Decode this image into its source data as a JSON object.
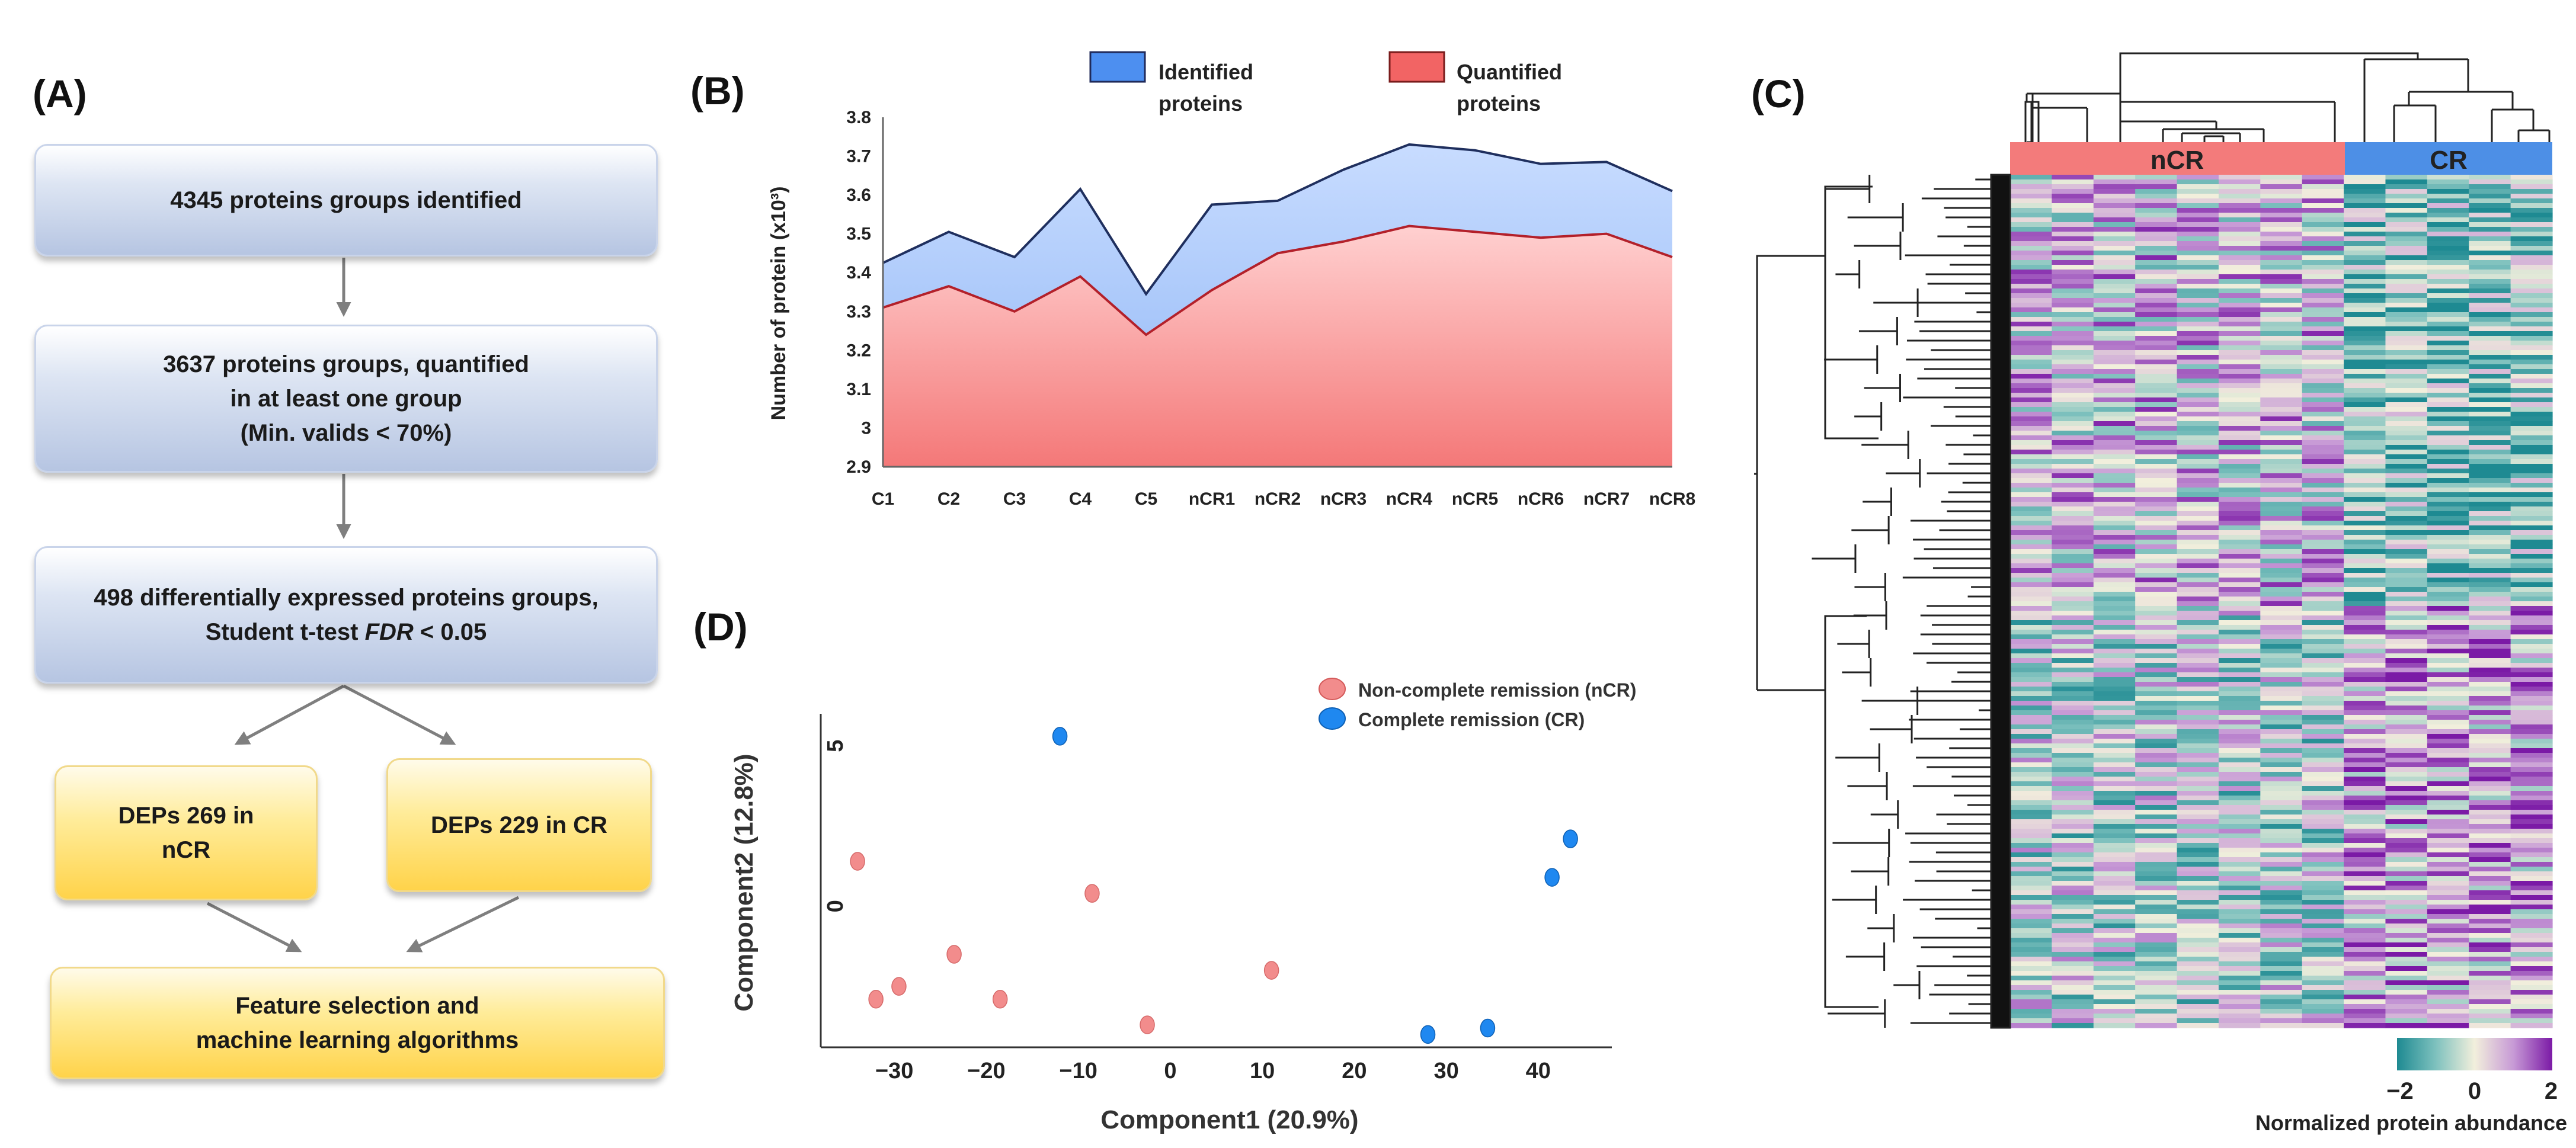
{
  "panel_labels": {
    "a": "(A)",
    "b": "(B)",
    "c": "(C)",
    "d": "(D)"
  },
  "flowchart": {
    "box1": "4345 proteins groups identified",
    "box2_line1": "3637 proteins groups, quantified",
    "box2_line2": "in at least one group",
    "box2_line3": "(Min. valids < 70%)",
    "box3_line1": "498 differentially expressed proteins groups,",
    "box3_line2_pre": "Student t-test ",
    "box3_line2_em": "FDR",
    "box3_line2_post": " < 0.05",
    "box4_line1": "DEPs 269 in",
    "box4_line2": "nCR",
    "box5": "DEPs 229 in CR",
    "box6_line1": "Feature selection and",
    "box6_line2": "machine learning algorithms"
  },
  "heatmap": {
    "group_ncr": "nCR",
    "group_cr": "CR",
    "colorbar_min": "−2",
    "colorbar_mid": "0",
    "colorbar_max": "2",
    "colorbar_title": "Normalized protein abundance",
    "colors": {
      "low": "#1e8a92",
      "mid": "#f2efdc",
      "high": "#8b13b0",
      "ncr": "#f37b7b",
      "cr": "#4d8fe6"
    }
  },
  "chart_data": [
    {
      "type": "area",
      "panel": "B",
      "categories": [
        "C1",
        "C2",
        "C3",
        "C4",
        "C5",
        "nCR1",
        "nCR2",
        "nCR3",
        "nCR4",
        "nCR5",
        "nCR6",
        "nCR7",
        "nCR8"
      ],
      "series": [
        {
          "name": "Identified proteins",
          "line1": "Identified",
          "line2": "proteins",
          "color": "#4d8ff0",
          "values": [
            3.425,
            3.505,
            3.44,
            3.615,
            3.345,
            3.575,
            3.585,
            3.665,
            3.73,
            3.715,
            3.68,
            3.685,
            3.61
          ]
        },
        {
          "name": "Quantified proteins",
          "line1": "Quantified",
          "line2": "proteins",
          "color": "#f26464",
          "values": [
            3.31,
            3.365,
            3.3,
            3.39,
            3.24,
            3.355,
            3.45,
            3.48,
            3.52,
            3.505,
            3.49,
            3.5,
            3.44
          ]
        }
      ],
      "ylabel": "Number of protein (x10³)",
      "ylim": [
        2.9,
        3.8
      ],
      "yticks": [
        "2.9",
        "3",
        "3.1",
        "3.2",
        "3.3",
        "3.4",
        "3.5",
        "3.6",
        "3.7",
        "3.8"
      ],
      "legend_position": "top"
    },
    {
      "type": "scatter",
      "panel": "D",
      "xlabel": "Component1 (20.9%)",
      "ylabel": "Component2 (12.8%)",
      "xlim": [
        -38,
        48
      ],
      "ylim": [
        -4.4,
        6
      ],
      "xticks": [
        "−30",
        "−20",
        "−10",
        "0",
        "10",
        "20",
        "30",
        "40"
      ],
      "xtick_values": [
        -30,
        -20,
        -10,
        0,
        10,
        20,
        30,
        40
      ],
      "yticks": [
        "0",
        "5"
      ],
      "ytick_values": [
        0,
        5
      ],
      "series": [
        {
          "name": "Non-complete remission (nCR)",
          "color": "#f28c8c",
          "points": [
            [
              -34,
              1.4
            ],
            [
              -32,
              -2.9
            ],
            [
              -29.5,
              -2.5
            ],
            [
              -23.5,
              -1.5
            ],
            [
              -18.5,
              -2.9
            ],
            [
              -8.5,
              0.4
            ],
            [
              -2.5,
              -3.7
            ],
            [
              11,
              -2.0
            ]
          ]
        },
        {
          "name": "Complete remission (CR)",
          "color": "#1f88f0",
          "points": [
            [
              -12,
              5.3
            ],
            [
              28,
              -4.0
            ],
            [
              34.5,
              -3.8
            ],
            [
              41.5,
              0.9
            ],
            [
              43.5,
              2.1
            ]
          ]
        }
      ],
      "legend_position": "top-right"
    }
  ]
}
